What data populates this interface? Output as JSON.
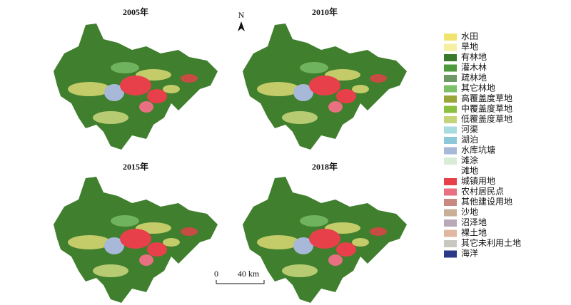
{
  "panels": [
    {
      "title": "2005年"
    },
    {
      "title": "2010年"
    },
    {
      "title": "2015年"
    },
    {
      "title": "2018年"
    }
  ],
  "north": "N",
  "scale": {
    "start": "0",
    "end": "40 km"
  },
  "legend": [
    {
      "label": "水田",
      "color": "#f0e36e"
    },
    {
      "label": "旱地",
      "color": "#f5f0a0"
    },
    {
      "label": "有林地",
      "color": "#387a2a"
    },
    {
      "label": "灌木林",
      "color": "#4f9a3c"
    },
    {
      "label": "疏林地",
      "color": "#6e9866"
    },
    {
      "label": "其它林地",
      "color": "#7dc06a"
    },
    {
      "label": "高覆盖度草地",
      "color": "#9aa53a"
    },
    {
      "label": "中覆盖度草地",
      "color": "#8cc040"
    },
    {
      "label": "低覆盖度草地",
      "color": "#c4d47a"
    },
    {
      "label": "河渠",
      "color": "#a8dce0"
    },
    {
      "label": "湖泊",
      "color": "#8cc8d8"
    },
    {
      "label": "水库坑塘",
      "color": "#a8b8d8"
    },
    {
      "label": "滩涂",
      "color": "#d8ecd8"
    },
    {
      "label": "滩地",
      "color": "#ffffff"
    },
    {
      "label": "城镇用地",
      "color": "#e8404a"
    },
    {
      "label": "农村居民点",
      "color": "#e87080"
    },
    {
      "label": "其他建设用地",
      "color": "#c88a80"
    },
    {
      "label": "沙地",
      "color": "#c8b098"
    },
    {
      "label": "沼泽地",
      "color": "#b8a8b8"
    },
    {
      "label": "裸土地",
      "color": "#e0b8a0"
    },
    {
      "label": "其它未利用土地",
      "color": "#c8c8c0"
    },
    {
      "label": "海洋",
      "color": "#2a3a88"
    }
  ]
}
